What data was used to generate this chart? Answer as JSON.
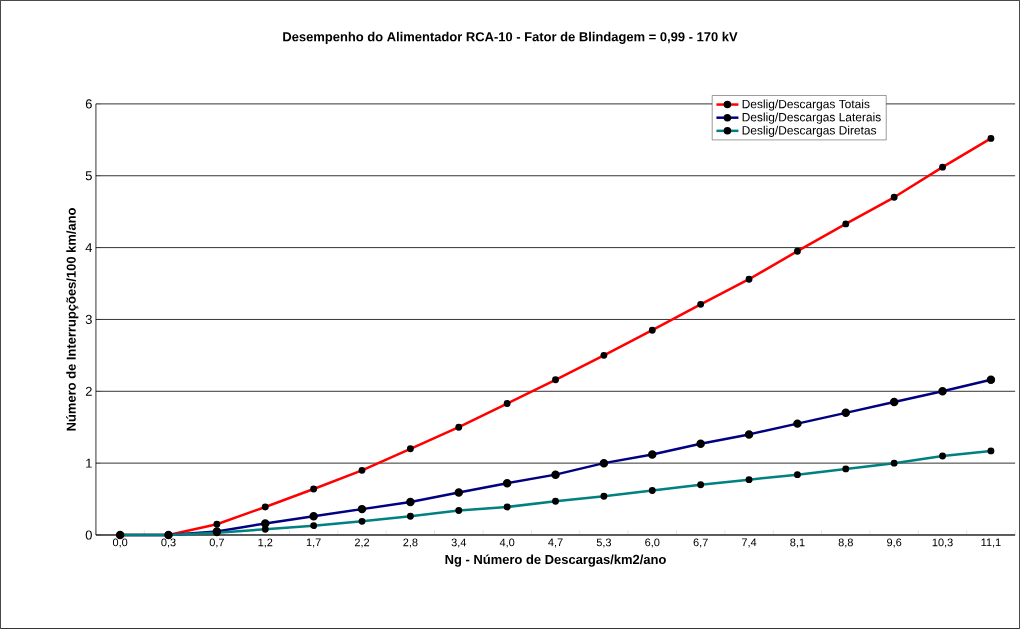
{
  "chart_data": {
    "type": "line",
    "title": "Desempenho do Alimentador RCA-10 - Fator de Blindagem = 0,99 - 170 kV",
    "xlabel": "Ng - Número de Descargas/km2/ano",
    "ylabel": "Número de Interrupções/100 km/ano",
    "categories": [
      "0,0",
      "0,3",
      "0,7",
      "1,2",
      "1,7",
      "2,2",
      "2,8",
      "3,4",
      "4,0",
      "4,7",
      "5,3",
      "6,0",
      "6,7",
      "7,4",
      "8,1",
      "8,8",
      "9,6",
      "10,3",
      "11,1"
    ],
    "series": [
      {
        "name": "Deslig/Descargas Totais",
        "color": "#ff0000",
        "values": [
          0,
          0,
          0.15,
          0.39,
          0.64,
          0.9,
          1.2,
          1.5,
          1.83,
          2.16,
          2.5,
          2.85,
          3.21,
          3.56,
          3.95,
          4.33,
          4.7,
          5.12,
          5.52
        ]
      },
      {
        "name": "Deslig/Descargas Laterais",
        "color": "#000080",
        "values": [
          0,
          0,
          0.05,
          0.16,
          0.26,
          0.36,
          0.46,
          0.59,
          0.72,
          0.84,
          1.0,
          1.12,
          1.27,
          1.4,
          1.55,
          1.7,
          1.85,
          2.0,
          2.16
        ]
      },
      {
        "name": "Deslig/Descargas Diretas",
        "color": "#008080",
        "values": [
          0,
          0,
          0.03,
          0.08,
          0.13,
          0.19,
          0.26,
          0.34,
          0.39,
          0.47,
          0.54,
          0.62,
          0.7,
          0.77,
          0.84,
          0.92,
          1.0,
          1.1,
          1.17
        ]
      }
    ],
    "ylim": [
      0,
      6
    ],
    "yticks": [
      0,
      1,
      2,
      3,
      4,
      5,
      6
    ],
    "grid": "y",
    "legend": "top right",
    "marker": "circle",
    "line_style": "solid"
  }
}
